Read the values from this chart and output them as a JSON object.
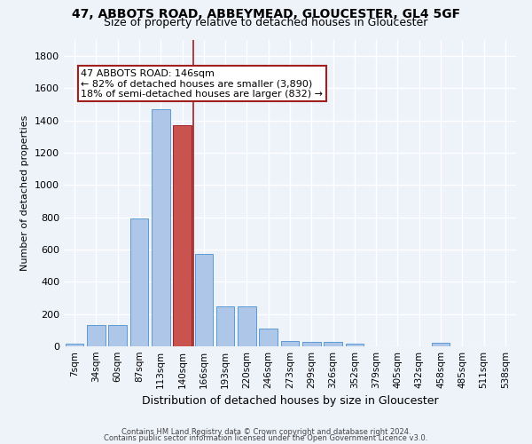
{
  "title1": "47, ABBOTS ROAD, ABBEYMEAD, GLOUCESTER, GL4 5GF",
  "title2": "Size of property relative to detached houses in Gloucester",
  "xlabel": "Distribution of detached houses by size in Gloucester",
  "ylabel": "Number of detached properties",
  "categories": [
    "7sqm",
    "34sqm",
    "60sqm",
    "87sqm",
    "113sqm",
    "140sqm",
    "166sqm",
    "193sqm",
    "220sqm",
    "246sqm",
    "273sqm",
    "299sqm",
    "326sqm",
    "352sqm",
    "379sqm",
    "405sqm",
    "432sqm",
    "458sqm",
    "485sqm",
    "511sqm",
    "538sqm"
  ],
  "values": [
    15,
    130,
    130,
    795,
    1470,
    1370,
    575,
    250,
    250,
    110,
    35,
    30,
    30,
    18,
    0,
    0,
    0,
    20,
    0,
    0,
    0
  ],
  "bar_color": "#aec6e8",
  "bar_edge_color": "#5b9bd5",
  "highlight_bar_index": 5,
  "highlight_bar_color": "#c9534f",
  "highlight_bar_edge_color": "#a02020",
  "vline_color": "#a02020",
  "annotation_title": "47 ABBOTS ROAD: 146sqm",
  "annotation_line1": "← 82% of detached houses are smaller (3,890)",
  "annotation_line2": "18% of semi-detached houses are larger (832) →",
  "annotation_box_color": "#ffffff",
  "annotation_box_edge_color": "#a02020",
  "ylim": [
    0,
    1900
  ],
  "yticks": [
    0,
    200,
    400,
    600,
    800,
    1000,
    1200,
    1400,
    1600,
    1800
  ],
  "footer1": "Contains HM Land Registry data © Crown copyright and database right 2024.",
  "footer2": "Contains public sector information licensed under the Open Government Licence v3.0.",
  "bg_color": "#eef2f9",
  "grid_color": "#ffffff",
  "title1_fontsize": 10,
  "title2_fontsize": 9,
  "ylabel_fontsize": 8,
  "xlabel_fontsize": 9,
  "tick_fontsize": 7.5,
  "ytick_fontsize": 8,
  "footer_fontsize": 6,
  "ann_fontsize": 8
}
